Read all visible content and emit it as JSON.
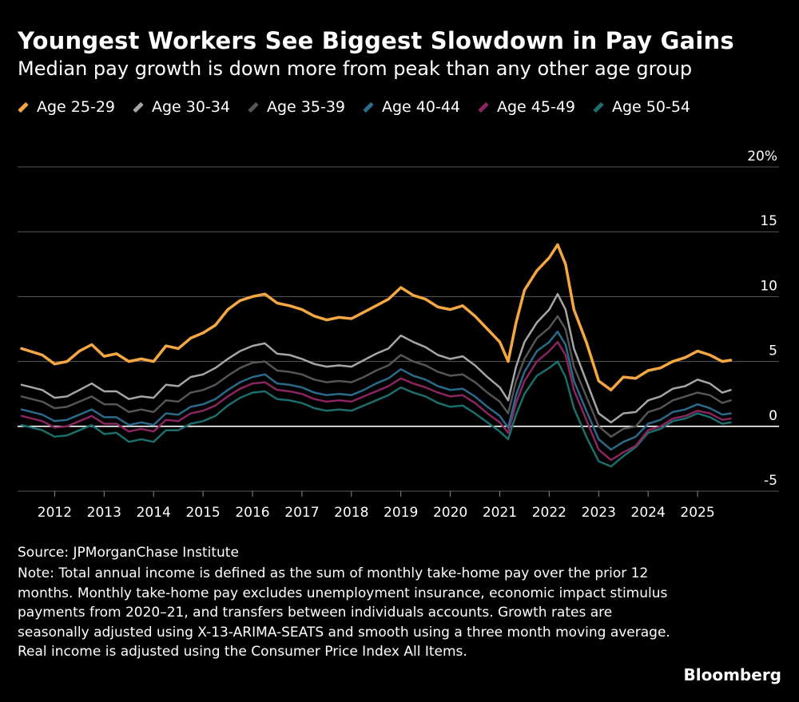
{
  "header": {
    "title": "Youngest Workers See Biggest Slowdown in Pay Gains",
    "subtitle": "Median pay growth is down more from peak than any other age group"
  },
  "footer": {
    "source": "Source: JPMorganChase Institute",
    "note": "Note: Total annual income is defined as the sum of monthly take-home pay over the prior 12 months. Monthly take-home pay excludes unemployment insurance, economic impact stimulus payments from 2020–21, and transfers between individuals accounts. Growth rates are seasonally adjusted using X-13-ARIMA-SEATS and smooth using a three month moving average. Real income is adjusted using the Consumer Price Index All Items.",
    "brand": "Bloomberg"
  },
  "chart_data": {
    "type": "line",
    "title": "Youngest Workers See Biggest Slowdown in Pay Gains",
    "subtitle": "Median pay growth is down more from peak than any other age group",
    "xlabel": "",
    "ylabel": "",
    "ylim": [
      -5,
      20
    ],
    "xlim": [
      2011.25,
      2025.92
    ],
    "yticks": [
      -5,
      0,
      5,
      10,
      15,
      20
    ],
    "ytick_labels": [
      "-5",
      "0",
      "5",
      "10",
      "15",
      "20%"
    ],
    "xticks": [
      2012,
      2013,
      2014,
      2015,
      2016,
      2017,
      2018,
      2019,
      2020,
      2021,
      2022,
      2023,
      2024,
      2025
    ],
    "xtick_labels": [
      "2012",
      "2013",
      "2014",
      "2015",
      "2016",
      "2017",
      "2018",
      "2019",
      "2020",
      "2021",
      "2022",
      "2023",
      "2024",
      "2025"
    ],
    "grid": true,
    "y_axis_position": "right",
    "legend_position": "top-left",
    "x": [
      2011.33,
      2011.75,
      2012.0,
      2012.25,
      2012.5,
      2012.75,
      2013.0,
      2013.25,
      2013.5,
      2013.75,
      2014.0,
      2014.25,
      2014.5,
      2014.75,
      2015.0,
      2015.25,
      2015.5,
      2015.75,
      2016.0,
      2016.25,
      2016.5,
      2016.75,
      2017.0,
      2017.25,
      2017.5,
      2017.75,
      2018.0,
      2018.25,
      2018.5,
      2018.75,
      2019.0,
      2019.25,
      2019.5,
      2019.75,
      2020.0,
      2020.25,
      2020.5,
      2020.75,
      2021.0,
      2021.17,
      2021.33,
      2021.5,
      2021.75,
      2022.0,
      2022.17,
      2022.33,
      2022.5,
      2022.75,
      2023.0,
      2023.25,
      2023.5,
      2023.75,
      2024.0,
      2024.25,
      2024.5,
      2024.75,
      2025.0,
      2025.25,
      2025.5,
      2025.67
    ],
    "series": [
      {
        "name": "Age 25-29",
        "color": "#f5a742",
        "width": 3.5,
        "values": [
          6.0,
          5.5,
          4.8,
          5.0,
          5.8,
          6.3,
          5.4,
          5.6,
          5.0,
          5.2,
          5.0,
          6.2,
          6.0,
          6.8,
          7.2,
          7.8,
          9.0,
          9.7,
          10.0,
          10.2,
          9.5,
          9.3,
          9.0,
          8.5,
          8.2,
          8.4,
          8.3,
          8.8,
          9.3,
          9.8,
          10.7,
          10.1,
          9.8,
          9.2,
          9.0,
          9.3,
          8.5,
          7.5,
          6.5,
          5.0,
          8.0,
          10.5,
          12.0,
          13.0,
          14.0,
          12.5,
          9.0,
          6.5,
          3.5,
          2.8,
          3.8,
          3.7,
          4.3,
          4.5,
          5.0,
          5.3,
          5.8,
          5.5,
          5.0,
          5.1
        ]
      },
      {
        "name": "Age 30-34",
        "color": "#a6a6a6",
        "width": 2.5,
        "values": [
          3.2,
          2.8,
          2.2,
          2.3,
          2.8,
          3.3,
          2.7,
          2.7,
          2.1,
          2.3,
          2.2,
          3.2,
          3.1,
          3.8,
          4.0,
          4.5,
          5.2,
          5.8,
          6.2,
          6.4,
          5.6,
          5.5,
          5.2,
          4.8,
          4.6,
          4.7,
          4.6,
          5.1,
          5.6,
          6.0,
          7.0,
          6.5,
          6.1,
          5.5,
          5.2,
          5.4,
          4.7,
          3.8,
          3.0,
          2.0,
          4.6,
          6.5,
          8.0,
          9.0,
          10.2,
          9.0,
          6.0,
          3.5,
          1.0,
          0.3,
          1.0,
          1.1,
          2.0,
          2.3,
          2.9,
          3.1,
          3.6,
          3.3,
          2.6,
          2.8
        ]
      },
      {
        "name": "Age 35-39",
        "color": "#555555",
        "width": 2.5,
        "values": [
          2.3,
          1.9,
          1.4,
          1.5,
          1.9,
          2.3,
          1.7,
          1.7,
          1.1,
          1.3,
          1.1,
          2.0,
          1.9,
          2.6,
          2.8,
          3.2,
          3.9,
          4.5,
          4.9,
          5.0,
          4.3,
          4.2,
          4.0,
          3.6,
          3.4,
          3.5,
          3.4,
          3.8,
          4.3,
          4.7,
          5.5,
          5.0,
          4.7,
          4.2,
          3.9,
          4.0,
          3.4,
          2.6,
          1.9,
          1.0,
          3.5,
          5.2,
          6.8,
          7.6,
          8.5,
          7.5,
          4.6,
          2.3,
          0.0,
          -0.8,
          -0.2,
          0.0,
          1.1,
          1.4,
          2.0,
          2.3,
          2.6,
          2.4,
          1.8,
          2.0
        ]
      },
      {
        "name": "Age 40-44",
        "color": "#2a6a8a",
        "width": 2.5,
        "values": [
          1.3,
          0.9,
          0.4,
          0.5,
          0.9,
          1.3,
          0.7,
          0.7,
          0.1,
          0.3,
          0.1,
          1.0,
          0.9,
          1.5,
          1.7,
          2.1,
          2.8,
          3.4,
          3.8,
          4.0,
          3.3,
          3.2,
          3.0,
          2.6,
          2.4,
          2.5,
          2.4,
          2.8,
          3.3,
          3.7,
          4.4,
          3.9,
          3.6,
          3.1,
          2.8,
          2.9,
          2.3,
          1.5,
          0.8,
          -0.1,
          2.4,
          4.2,
          5.8,
          6.5,
          7.3,
          6.3,
          3.5,
          1.2,
          -1.0,
          -1.8,
          -1.2,
          -0.8,
          0.2,
          0.5,
          1.1,
          1.3,
          1.7,
          1.4,
          0.9,
          1.0
        ]
      },
      {
        "name": "Age 45-49",
        "color": "#8a2560",
        "width": 2.5,
        "values": [
          0.8,
          0.4,
          -0.1,
          0.0,
          0.4,
          0.8,
          0.2,
          0.2,
          -0.4,
          -0.2,
          -0.4,
          0.5,
          0.4,
          1.0,
          1.2,
          1.6,
          2.3,
          2.9,
          3.3,
          3.4,
          2.8,
          2.7,
          2.5,
          2.1,
          1.9,
          2.0,
          1.9,
          2.3,
          2.7,
          3.1,
          3.7,
          3.3,
          3.0,
          2.6,
          2.3,
          2.4,
          1.8,
          1.0,
          0.3,
          -0.5,
          1.8,
          3.5,
          5.0,
          5.8,
          6.5,
          5.5,
          2.8,
          0.5,
          -1.8,
          -2.6,
          -2.0,
          -1.5,
          -0.3,
          0.0,
          0.6,
          0.8,
          1.2,
          1.0,
          0.5,
          0.6
        ]
      },
      {
        "name": "Age 50-54",
        "color": "#1c6e6c",
        "width": 2.5,
        "values": [
          0.1,
          -0.3,
          -0.8,
          -0.7,
          -0.3,
          0.1,
          -0.6,
          -0.5,
          -1.2,
          -1.0,
          -1.2,
          -0.3,
          -0.3,
          0.2,
          0.4,
          0.8,
          1.6,
          2.2,
          2.6,
          2.7,
          2.1,
          2.0,
          1.8,
          1.4,
          1.2,
          1.3,
          1.2,
          1.6,
          2.0,
          2.4,
          3.0,
          2.6,
          2.3,
          1.8,
          1.5,
          1.6,
          1.0,
          0.3,
          -0.4,
          -1.0,
          0.9,
          2.5,
          3.9,
          4.5,
          5.0,
          3.8,
          1.4,
          -0.8,
          -2.7,
          -3.1,
          -2.3,
          -1.6,
          -0.5,
          -0.2,
          0.4,
          0.6,
          1.0,
          0.7,
          0.2,
          0.3
        ]
      }
    ]
  }
}
